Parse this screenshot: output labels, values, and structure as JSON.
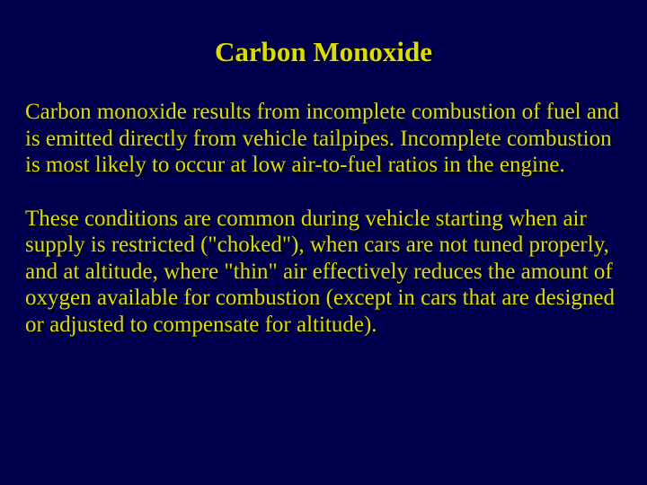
{
  "slide": {
    "background_color": "#00004e",
    "title": {
      "text": "Carbon Monoxide",
      "color": "#dcdc00",
      "fontsize": 31,
      "font_weight": "bold",
      "align": "center",
      "text_shadow": "2px 2px 2px #000000"
    },
    "paragraphs": [
      {
        "text": "Carbon monoxide results from incomplete combustion of fuel and is emitted directly from vehicle tailpipes. Incomplete combustion is most likely to occur at low air-to-fuel ratios in the engine.",
        "color": "#dcdc00",
        "fontsize": 25,
        "text_shadow": "2px 2px 2px #000000"
      },
      {
        "text": "These conditions are common during vehicle starting when air supply is restricted (\"choked\"), when cars are not tuned properly, and at altitude, where \"thin\" air effectively reduces the amount of oxygen available for combustion (except in cars that are designed or adjusted to compensate for altitude).",
        "color": "#dcdc00",
        "fontsize": 25,
        "text_shadow": "2px 2px 2px #000000"
      }
    ]
  }
}
